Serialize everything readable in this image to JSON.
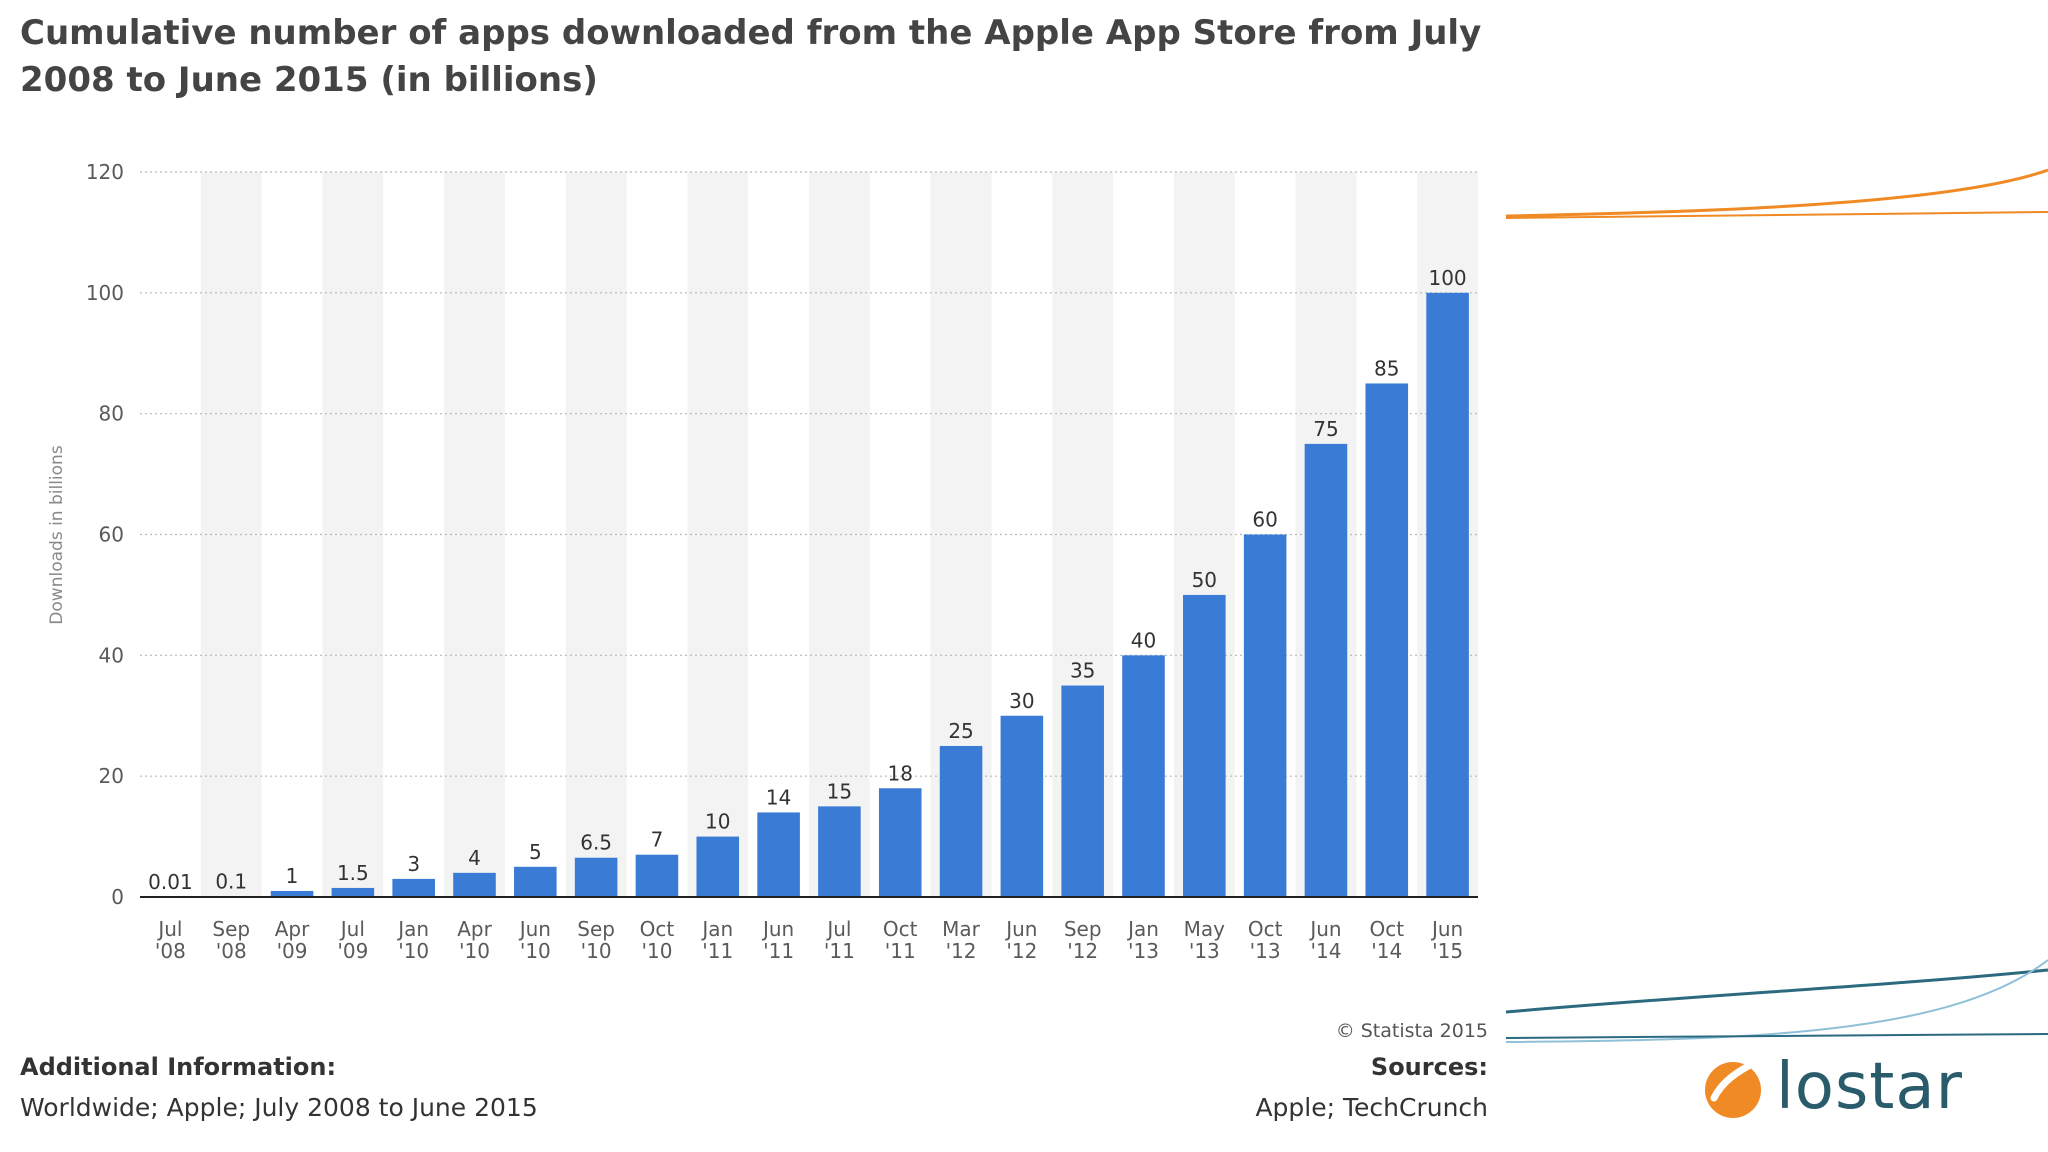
{
  "chart_data": {
    "type": "bar",
    "title": "Cumulative number of apps downloaded from the Apple App Store from July 2008 to June 2015 (in billions)",
    "xlabel": "",
    "ylabel": "Downloads in billions",
    "ylim": [
      0,
      120
    ],
    "yticks": [
      "0",
      "20",
      "40",
      "60",
      "80",
      "100",
      "120"
    ],
    "categories": [
      [
        "Jul",
        "'08"
      ],
      [
        "Sep",
        "'08"
      ],
      [
        "Apr",
        "'09"
      ],
      [
        "Jul",
        "'09"
      ],
      [
        "Jan",
        "'10"
      ],
      [
        "Apr",
        "'10"
      ],
      [
        "Jun",
        "'10"
      ],
      [
        "Sep",
        "'10"
      ],
      [
        "Oct",
        "'10"
      ],
      [
        "Jan",
        "'11"
      ],
      [
        "Jun",
        "'11"
      ],
      [
        "Jul",
        "'11"
      ],
      [
        "Oct",
        "'11"
      ],
      [
        "Mar",
        "'12"
      ],
      [
        "Jun",
        "'12"
      ],
      [
        "Sep",
        "'12"
      ],
      [
        "Jan",
        "'13"
      ],
      [
        "May",
        "'13"
      ],
      [
        "Oct",
        "'13"
      ],
      [
        "Jun",
        "'14"
      ],
      [
        "Oct",
        "'14"
      ],
      [
        "Jun",
        "'15"
      ]
    ],
    "values": [
      0.01,
      0.1,
      1,
      1.5,
      3,
      4,
      5,
      6.5,
      7,
      10,
      14,
      15,
      18,
      25,
      30,
      35,
      40,
      50,
      60,
      75,
      85,
      100
    ],
    "value_labels": [
      "0.01",
      "0.1",
      "1",
      "1.5",
      "3",
      "4",
      "5",
      "6.5",
      "7",
      "10",
      "14",
      "15",
      "18",
      "25",
      "30",
      "35",
      "40",
      "50",
      "60",
      "75",
      "85",
      "100"
    ],
    "bar_color": "#3a7bd5",
    "band_color": "#f3f3f3",
    "grid": true
  },
  "credit": "© Statista 2015",
  "footer": {
    "info_heading": "Additional Information:",
    "info_text": "Worldwide; Apple; July 2008 to June 2015",
    "sources_heading": "Sources:",
    "sources_text": "Apple; TechCrunch"
  },
  "logo": {
    "text": "lostar",
    "icon": "lostar-swoosh-icon",
    "orange": "#f08a24",
    "teal": "#2a5b6a"
  },
  "decor": {
    "orange": "#f08a24",
    "teal_dark": "#2c6a80",
    "teal_light": "#8fc0d8"
  }
}
